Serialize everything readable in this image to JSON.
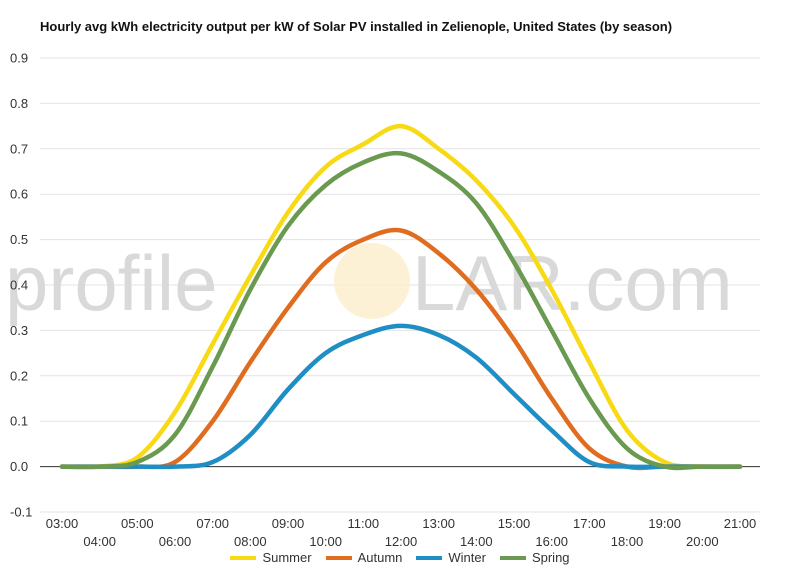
{
  "title": "Hourly avg kWh electricity output per kW of Solar PV installed in Zelienople, United States (by season)",
  "watermark": {
    "left": "profile",
    "right": "LAR.com"
  },
  "chart_data": {
    "type": "line",
    "title": "Hourly avg kWh electricity output per kW of Solar PV installed in Zelienople, United States (by season)",
    "xlabel": "",
    "ylabel": "",
    "x": [
      "03:00",
      "04:00",
      "05:00",
      "06:00",
      "07:00",
      "08:00",
      "09:00",
      "10:00",
      "11:00",
      "12:00",
      "13:00",
      "14:00",
      "15:00",
      "16:00",
      "17:00",
      "18:00",
      "19:00",
      "20:00",
      "21:00"
    ],
    "xticks": [
      "03:00",
      "04:00",
      "05:00",
      "06:00",
      "07:00",
      "08:00",
      "09:00",
      "10:00",
      "11:00",
      "12:00",
      "13:00",
      "14:00",
      "15:00",
      "16:00",
      "17:00",
      "18:00",
      "19:00",
      "20:00",
      "21:00"
    ],
    "yticks": [
      "0.9",
      "0.8",
      "0.7",
      "0.6",
      "0.5",
      "0.4",
      "0.3",
      "0.2",
      "0.1",
      "0.0",
      "-0.1"
    ],
    "ylim": [
      -0.1,
      0.9
    ],
    "grid": true,
    "legend_position": "bottom",
    "series": [
      {
        "name": "Summer",
        "color": "#f7d914",
        "values": [
          0,
          0,
          0.02,
          0.12,
          0.27,
          0.42,
          0.56,
          0.66,
          0.71,
          0.75,
          0.7,
          0.63,
          0.53,
          0.39,
          0.23,
          0.08,
          0.01,
          0,
          0
        ]
      },
      {
        "name": "Autumn",
        "color": "#e06c1f",
        "values": [
          0,
          0,
          0,
          0.01,
          0.1,
          0.23,
          0.35,
          0.45,
          0.5,
          0.52,
          0.47,
          0.39,
          0.28,
          0.15,
          0.04,
          0,
          0,
          0,
          0
        ]
      },
      {
        "name": "Winter",
        "color": "#1f8ec4",
        "values": [
          0,
          0,
          0,
          0,
          0.01,
          0.07,
          0.17,
          0.25,
          0.29,
          0.31,
          0.29,
          0.24,
          0.16,
          0.08,
          0.01,
          0,
          0,
          0,
          0
        ]
      },
      {
        "name": "Spring",
        "color": "#6a9a4f",
        "values": [
          0,
          0,
          0.01,
          0.07,
          0.22,
          0.39,
          0.53,
          0.62,
          0.67,
          0.69,
          0.65,
          0.58,
          0.45,
          0.3,
          0.15,
          0.04,
          0,
          0,
          0
        ]
      }
    ]
  }
}
